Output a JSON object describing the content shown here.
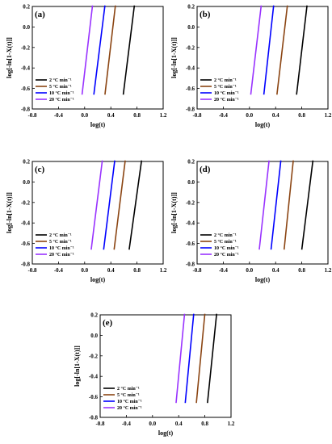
{
  "chart_data": [
    {
      "type": "line",
      "panel_label": "(a)",
      "xlabel": "log(t)",
      "ylabel": "log[-ln[1-X(t)]]",
      "xlim": [
        -0.8,
        1.2
      ],
      "ylim": [
        -0.8,
        0.2
      ],
      "xticks": [
        "-0.8",
        "-0.4",
        "0.0",
        "0.4",
        "0.8",
        "1.2"
      ],
      "yticks": [
        "0.2",
        "0.0",
        "-0.2",
        "-0.4",
        "-0.6",
        "-0.8"
      ],
      "legend_position": "bottom-left",
      "series": [
        {
          "name": "2 °C min⁻¹",
          "color": "#000000",
          "x": [
            0.59,
            0.76
          ],
          "y": [
            -0.66,
            0.21
          ]
        },
        {
          "name": "5 °C min⁻¹",
          "color": "#8B4513",
          "x": [
            0.31,
            0.47
          ],
          "y": [
            -0.66,
            0.21
          ]
        },
        {
          "name": "10 °C min⁻¹",
          "color": "#0000FF",
          "x": [
            0.14,
            0.31
          ],
          "y": [
            -0.66,
            0.21
          ]
        },
        {
          "name": "20 °C min⁻¹",
          "color": "#9933FF",
          "x": [
            -0.04,
            0.12
          ],
          "y": [
            -0.66,
            0.21
          ]
        }
      ]
    },
    {
      "type": "line",
      "panel_label": "(b)",
      "xlabel": "log(t)",
      "ylabel": "log[-ln[1-X(t)]]",
      "xlim": [
        -0.8,
        1.2
      ],
      "ylim": [
        -0.8,
        0.2
      ],
      "xticks": [
        "-0.8",
        "-0.4",
        "0.0",
        "0.4",
        "0.8",
        "1.2"
      ],
      "yticks": [
        "0.2",
        "0.0",
        "-0.2",
        "-0.4",
        "-0.6",
        "-0.8"
      ],
      "legend_position": "bottom-left",
      "series": [
        {
          "name": "2 °C min⁻¹",
          "color": "#000000",
          "x": [
            0.72,
            0.88
          ],
          "y": [
            -0.66,
            0.21
          ]
        },
        {
          "name": "5 °C min⁻¹",
          "color": "#8B4513",
          "x": [
            0.42,
            0.58
          ],
          "y": [
            -0.66,
            0.21
          ]
        },
        {
          "name": "10 °C min⁻¹",
          "color": "#0000FF",
          "x": [
            0.22,
            0.37
          ],
          "y": [
            -0.66,
            0.21
          ]
        },
        {
          "name": "20 °C min⁻¹",
          "color": "#9933FF",
          "x": [
            0.02,
            0.18
          ],
          "y": [
            -0.66,
            0.21
          ]
        }
      ]
    },
    {
      "type": "line",
      "panel_label": "(c)",
      "xlabel": "log(t)",
      "ylabel": "log[-ln[1-X(t)]]",
      "xlim": [
        -0.8,
        1.2
      ],
      "ylim": [
        -0.8,
        0.2
      ],
      "xticks": [
        "-0.8",
        "-0.4",
        "0.0",
        "0.4",
        "0.8",
        "1.2"
      ],
      "yticks": [
        "0.2",
        "0.0",
        "-0.2",
        "-0.4",
        "-0.6",
        "-0.8"
      ],
      "legend_position": "bottom-left",
      "series": [
        {
          "name": "2 °C min⁻¹",
          "color": "#000000",
          "x": [
            0.68,
            0.87
          ],
          "y": [
            -0.66,
            0.21
          ]
        },
        {
          "name": "5 °C min⁻¹",
          "color": "#8B4513",
          "x": [
            0.45,
            0.62
          ],
          "y": [
            -0.66,
            0.21
          ]
        },
        {
          "name": "10 °C min⁻¹",
          "color": "#0000FF",
          "x": [
            0.29,
            0.46
          ],
          "y": [
            -0.66,
            0.21
          ]
        },
        {
          "name": "20 °C min⁻¹",
          "color": "#9933FF",
          "x": [
            0.1,
            0.27
          ],
          "y": [
            -0.66,
            0.21
          ]
        }
      ]
    },
    {
      "type": "line",
      "panel_label": "(d)",
      "xlabel": "log(t)",
      "ylabel": "log[-ln[1-X(t)]]",
      "xlim": [
        -0.8,
        1.2
      ],
      "ylim": [
        -0.8,
        0.2
      ],
      "xticks": [
        "-0.8",
        "-0.4",
        "0.0",
        "0.4",
        "0.8",
        "1.2"
      ],
      "yticks": [
        "0.2",
        "0.0",
        "-0.2",
        "-0.4",
        "-0.6",
        "-0.8"
      ],
      "legend_position": "bottom-left",
      "series": [
        {
          "name": "2 °C min⁻¹",
          "color": "#000000",
          "x": [
            0.8,
            0.97
          ],
          "y": [
            -0.66,
            0.21
          ]
        },
        {
          "name": "5 °C min⁻¹",
          "color": "#8B4513",
          "x": [
            0.53,
            0.67
          ],
          "y": [
            -0.66,
            0.21
          ]
        },
        {
          "name": "10 °C min⁻¹",
          "color": "#0000FF",
          "x": [
            0.33,
            0.48
          ],
          "y": [
            -0.66,
            0.21
          ]
        },
        {
          "name": "20 °C min⁻¹",
          "color": "#9933FF",
          "x": [
            0.15,
            0.3
          ],
          "y": [
            -0.66,
            0.21
          ]
        }
      ]
    },
    {
      "type": "line",
      "panel_label": "(e)",
      "xlabel": "log(t)",
      "ylabel": "log[-ln[1-X(t)]]",
      "xlim": [
        -0.8,
        1.2
      ],
      "ylim": [
        -0.8,
        0.2
      ],
      "xticks": [
        "-0.8",
        "-0.4",
        "0.0",
        "0.4",
        "0.8",
        "1.2"
      ],
      "yticks": [
        "0.2",
        "0.0",
        "-0.2",
        "-0.4",
        "-0.6",
        "-0.8"
      ],
      "legend_position": "bottom-left",
      "series": [
        {
          "name": "2 °C min⁻¹",
          "color": "#000000",
          "x": [
            0.84,
            0.98
          ],
          "y": [
            -0.66,
            0.21
          ]
        },
        {
          "name": "5 °C min⁻¹",
          "color": "#8B4513",
          "x": [
            0.67,
            0.8
          ],
          "y": [
            -0.66,
            0.21
          ]
        },
        {
          "name": "10 °C min⁻¹",
          "color": "#0000FF",
          "x": [
            0.5,
            0.63
          ],
          "y": [
            -0.66,
            0.21
          ]
        },
        {
          "name": "20 °C min⁻¹",
          "color": "#9933FF",
          "x": [
            0.36,
            0.49
          ],
          "y": [
            -0.66,
            0.21
          ]
        }
      ]
    }
  ]
}
